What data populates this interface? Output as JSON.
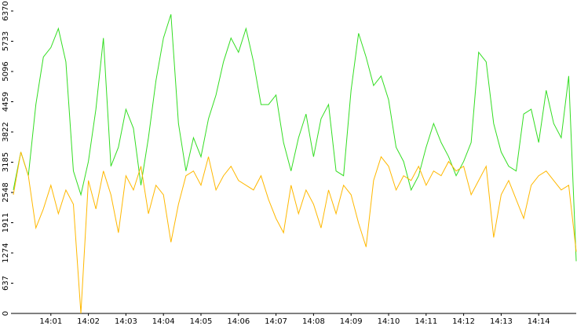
{
  "chart_data": {
    "type": "line",
    "x": [
      0,
      0.2,
      0.4,
      0.6,
      0.8,
      1,
      1.2,
      1.4,
      1.6,
      1.8,
      2,
      2.2,
      2.4,
      2.6,
      2.8,
      3,
      3.2,
      3.4,
      3.6,
      3.8,
      4,
      4.2,
      4.4,
      4.6,
      4.8,
      5,
      5.2,
      5.4,
      5.6,
      5.8,
      6,
      6.2,
      6.4,
      6.6,
      6.8,
      7,
      7.2,
      7.4,
      7.6,
      7.8,
      8,
      8.2,
      8.4,
      8.6,
      8.8,
      9,
      9.2,
      9.4,
      9.6,
      9.8,
      10,
      10.2,
      10.4,
      10.6,
      10.8,
      11,
      11.2,
      11.4,
      11.6,
      11.8,
      12,
      12.2,
      12.4,
      12.6,
      12.8,
      13,
      13.2,
      13.4,
      13.6,
      13.8,
      14,
      14.2,
      14.4,
      14.6,
      14.8,
      15
    ],
    "series": [
      {
        "color": "#33dd22",
        "values": [
          2600,
          3400,
          2900,
          4400,
          5400,
          5600,
          6000,
          5300,
          3000,
          2500,
          3200,
          4300,
          5800,
          3100,
          3500,
          4300,
          3900,
          2700,
          3700,
          4900,
          5800,
          6300,
          4000,
          3000,
          3700,
          3300,
          4100,
          4600,
          5300,
          5800,
          5500,
          6000,
          5300,
          4400,
          4400,
          4600,
          3600,
          3000,
          3700,
          4200,
          3300,
          4100,
          4400,
          3000,
          2900,
          4700,
          5900,
          5400,
          4800,
          5000,
          4500,
          3500,
          3200,
          2600,
          2900,
          3500,
          4000,
          3600,
          3300,
          2900,
          3200,
          3600,
          5500,
          5300,
          4000,
          3400,
          3100,
          3000,
          4200,
          4300,
          3600,
          4700,
          4000,
          3700,
          5000,
          1100
        ]
      },
      {
        "color": "#ffb800",
        "values": [
          2500,
          3400,
          2900,
          1800,
          2200,
          2700,
          2100,
          2600,
          2300,
          0,
          2800,
          2200,
          3000,
          2500,
          1700,
          2900,
          2600,
          3100,
          2100,
          2700,
          2500,
          1500,
          2300,
          2900,
          3000,
          2700,
          3300,
          2600,
          2900,
          3100,
          2800,
          2700,
          2600,
          2900,
          2400,
          2000,
          1700,
          2700,
          2100,
          2600,
          2300,
          1800,
          2600,
          2100,
          2700,
          2500,
          1900,
          1400,
          2800,
          3300,
          3100,
          2600,
          2900,
          2800,
          3100,
          2700,
          3000,
          2900,
          3200,
          3000,
          3100,
          2500,
          2800,
          3100,
          1600,
          2500,
          2800,
          2400,
          2000,
          2700,
          2900,
          3000,
          2800,
          2600,
          2700,
          1300
        ]
      }
    ],
    "xlim": [
      0,
      15
    ],
    "xticks": [
      {
        "value": 1,
        "label": "14:01"
      },
      {
        "value": 2,
        "label": "14:02"
      },
      {
        "value": 3,
        "label": "14:03"
      },
      {
        "value": 4,
        "label": "14:04"
      },
      {
        "value": 5,
        "label": "14:05"
      },
      {
        "value": 6,
        "label": "14:06"
      },
      {
        "value": 7,
        "label": "14:07"
      },
      {
        "value": 8,
        "label": "14:08"
      },
      {
        "value": 9,
        "label": "14:09"
      },
      {
        "value": 10,
        "label": "14:10"
      },
      {
        "value": 11,
        "label": "14:11"
      },
      {
        "value": 12,
        "label": "14:12"
      },
      {
        "value": 13,
        "label": "14:13"
      },
      {
        "value": 14,
        "label": "14:14"
      }
    ],
    "ylim": [
      0,
      6370
    ],
    "yticks": [
      0,
      637,
      1274,
      1911,
      2548,
      3185,
      3822,
      4459,
      5096,
      5733,
      6370
    ]
  }
}
